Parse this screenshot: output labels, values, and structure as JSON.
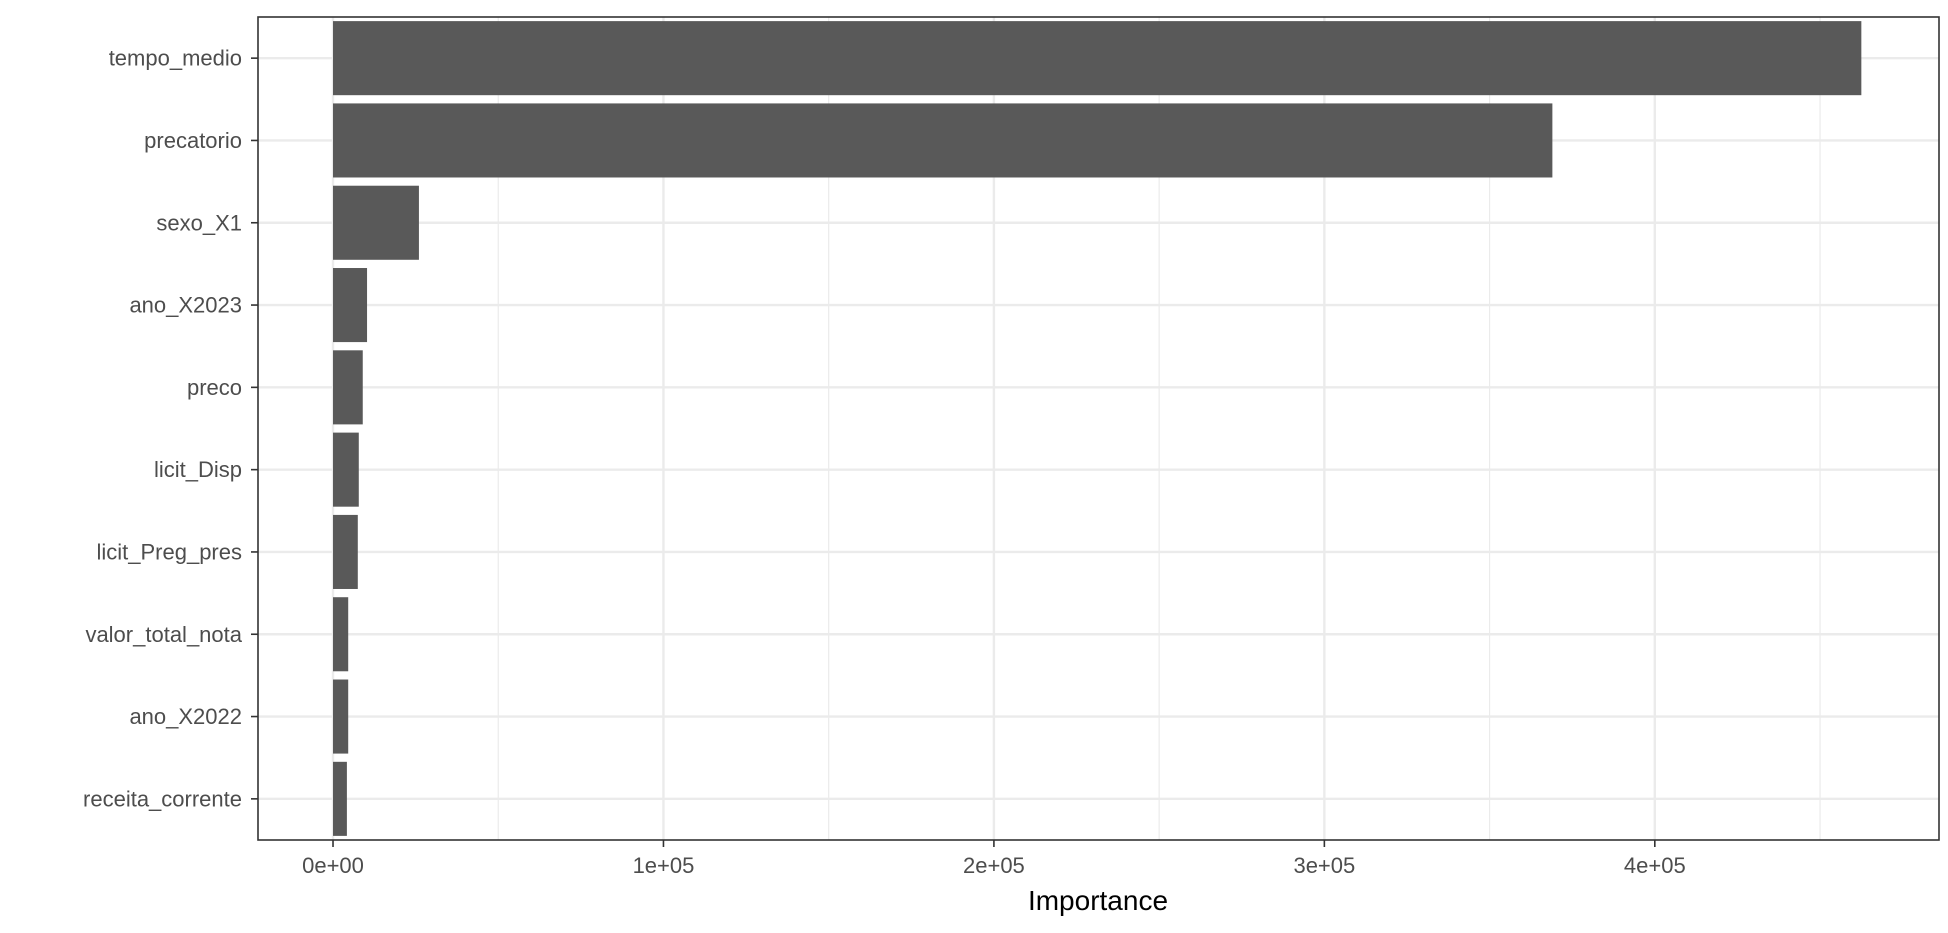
{
  "chart_data": {
    "type": "bar",
    "orientation": "horizontal",
    "title": "",
    "xlabel": "Importance",
    "ylabel": "",
    "categories": [
      "tempo_medio",
      "precatorio",
      "sexo_X1",
      "ano_X2023",
      "preco",
      "licit_Disp",
      "licit_Preg_pres",
      "valor_total_nota",
      "ano_X2022",
      "receita_corrente"
    ],
    "values": [
      462500,
      369000,
      26000,
      10300,
      9000,
      7800,
      7500,
      4600,
      4600,
      4200
    ],
    "xlim": [
      -22700,
      486000
    ],
    "x_ticks": [
      0,
      100000,
      200000,
      300000,
      400000
    ],
    "x_tick_labels": [
      "0e+00",
      "1e+05",
      "2e+05",
      "3e+05",
      "4e+05"
    ],
    "grid": true,
    "legend": "none",
    "bar_color": "#595959",
    "grid_color": "#ebebeb",
    "panel_border_color": "#333333"
  }
}
